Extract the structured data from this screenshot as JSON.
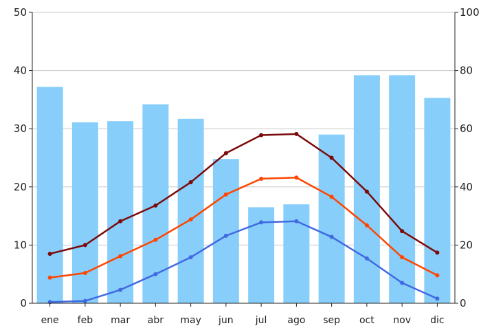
{
  "chart_data": {
    "type": "bar",
    "categories": [
      "ene",
      "feb",
      "mar",
      "abr",
      "may",
      "jun",
      "jul",
      "ago",
      "sep",
      "oct",
      "nov",
      "dic"
    ],
    "title": "",
    "xlabel": "",
    "ylabel": "",
    "y_left": {
      "lim": [
        0,
        50
      ],
      "ticks": [
        0,
        10,
        20,
        30,
        40,
        50
      ]
    },
    "y_right": {
      "lim": [
        0,
        100
      ],
      "ticks": [
        0,
        20,
        40,
        60,
        80,
        100
      ]
    },
    "grid": true,
    "legend": "none",
    "bar_series": {
      "axis": "right",
      "color": "#87cefa",
      "values": [
        74.4,
        62.2,
        62.6,
        68.4,
        63.4,
        49.6,
        33.0,
        34.0,
        58.0,
        78.4,
        78.4,
        70.6
      ]
    },
    "series": [
      {
        "axis": "left",
        "color": "#7b0a0a",
        "values": [
          8.5,
          10.0,
          14.1,
          16.8,
          20.8,
          25.8,
          28.9,
          29.1,
          25.0,
          19.2,
          12.4,
          8.7
        ]
      },
      {
        "axis": "left",
        "color": "#ff4500",
        "values": [
          4.4,
          5.2,
          8.1,
          10.9,
          14.4,
          18.7,
          21.4,
          21.6,
          18.3,
          13.4,
          7.9,
          4.8
        ]
      },
      {
        "axis": "left",
        "color": "#4169e1",
        "values": [
          0.2,
          0.4,
          2.3,
          5.0,
          7.9,
          11.6,
          13.9,
          14.1,
          11.4,
          7.7,
          3.5,
          0.8
        ]
      }
    ]
  }
}
